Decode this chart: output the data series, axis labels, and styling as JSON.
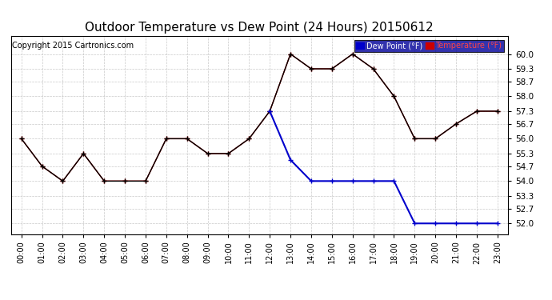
{
  "title": "Outdoor Temperature vs Dew Point (24 Hours) 20150612",
  "copyright": "Copyright 2015 Cartronics.com",
  "hours": [
    "00:00",
    "01:00",
    "02:00",
    "03:00",
    "04:00",
    "05:00",
    "06:00",
    "07:00",
    "08:00",
    "09:00",
    "10:00",
    "11:00",
    "12:00",
    "13:00",
    "14:00",
    "15:00",
    "16:00",
    "17:00",
    "18:00",
    "19:00",
    "20:00",
    "21:00",
    "22:00",
    "23:00"
  ],
  "temperature": [
    56.0,
    54.7,
    54.0,
    55.3,
    54.0,
    54.0,
    54.0,
    56.0,
    56.0,
    55.3,
    55.3,
    56.0,
    57.3,
    60.0,
    59.3,
    59.3,
    60.0,
    59.3,
    58.0,
    56.0,
    56.0,
    56.7,
    57.3,
    57.3
  ],
  "dew_point": [
    null,
    null,
    null,
    null,
    null,
    null,
    null,
    null,
    null,
    null,
    null,
    null,
    57.3,
    55.0,
    54.0,
    54.0,
    54.0,
    54.0,
    54.0,
    52.0,
    52.0,
    52.0,
    52.0,
    52.0
  ],
  "temp_color": "#cc0000",
  "dew_color": "#0000cc",
  "black_color": "#000000",
  "ylim_min": 51.5,
  "ylim_max": 60.85,
  "yticks": [
    52.0,
    52.7,
    53.3,
    54.0,
    54.7,
    55.3,
    56.0,
    56.7,
    57.3,
    58.0,
    58.7,
    59.3,
    60.0
  ],
  "bg_color": "#ffffff",
  "grid_color": "#bbbbbb",
  "title_fontsize": 11,
  "copyright_fontsize": 7,
  "legend_dew_label": "Dew Point (°F)",
  "legend_temp_label": "Temperature (°F)",
  "legend_bg": "#000099",
  "fig_width": 6.9,
  "fig_height": 3.75,
  "dpi": 100
}
